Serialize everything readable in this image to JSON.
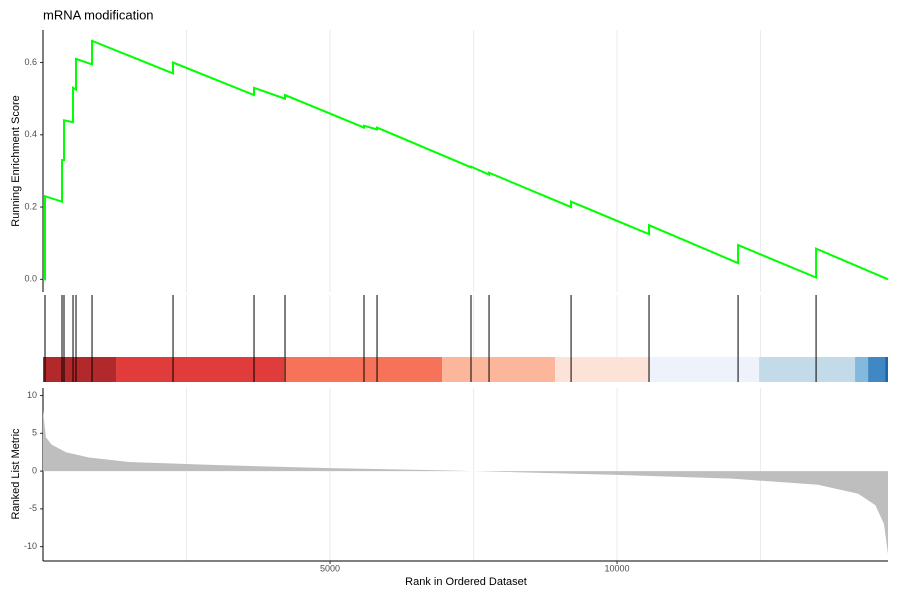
{
  "chart_data": {
    "type": "gsea",
    "title": "mRNA modification",
    "x_label": "Rank in Ordered Dataset",
    "xlim": [
      0,
      14720
    ],
    "xticks": [
      5000,
      10000
    ],
    "minor_xticks": [
      2500,
      7500,
      12500
    ],
    "grid": true,
    "score": {
      "y_label": "Running Enrichment Score",
      "color": "#00ff00",
      "ylim": [
        -0.035,
        0.69
      ],
      "yticks": [
        {
          "value": 0,
          "label": "0.0"
        },
        0.2,
        0.4,
        0.6
      ],
      "x": [
        0,
        35,
        35,
        331,
        331,
        366,
        366,
        523,
        523,
        575,
        575,
        854,
        854,
        2265,
        2265,
        3676,
        3676,
        4216,
        4216,
        5592,
        5592,
        5819,
        5819,
        7456,
        7456,
        7770,
        7770,
        9199,
        9199,
        10557,
        10557,
        12108,
        12108,
        13467,
        13467,
        14720
      ],
      "values": [
        0,
        0,
        0.23,
        0.215,
        0.33,
        0.33,
        0.44,
        0.435,
        0.53,
        0.525,
        0.61,
        0.595,
        0.66,
        0.57,
        0.6,
        0.51,
        0.53,
        0.5,
        0.51,
        0.42,
        0.425,
        0.415,
        0.42,
        0.31,
        0.312,
        0.29,
        0.295,
        0.2,
        0.215,
        0.125,
        0.15,
        0.045,
        0.095,
        0.005,
        0.085,
        0
      ]
    },
    "hits": [
      35,
      331,
      366,
      523,
      575,
      854,
      2265,
      3676,
      4216,
      5592,
      5819,
      7456,
      7770,
      9199,
      10557,
      12108,
      13467
    ],
    "hit_color": "#000000",
    "rank_bins": {
      "edges": [
        0,
        1272,
        4199,
        6951,
        8920,
        10557,
        12474,
        14146,
        14373,
        14669,
        14720
      ],
      "colors": [
        "#b2292c",
        "#e03c3b",
        "#f6735a",
        "#fcb69c",
        "#fde3d7",
        "#eef3fb",
        "#c3dbe9",
        "#82b9dc",
        "#3f88c4",
        "#2165ab"
      ]
    },
    "metric": {
      "y_label": "Ranked List Metric",
      "color": "#bebebe",
      "ylim": [
        -11.9,
        11
      ],
      "yticks": [
        -10,
        -5,
        0,
        5,
        10
      ],
      "x": [
        0,
        50,
        150,
        400,
        800,
        1500,
        3000,
        5000,
        7000,
        8000,
        10000,
        12000,
        13500,
        14200,
        14500,
        14650,
        14720
      ],
      "values": [
        8,
        4.5,
        3.5,
        2.5,
        1.8,
        1.2,
        0.8,
        0.4,
        0.1,
        -0.1,
        -0.5,
        -1,
        -1.8,
        -3,
        -4.5,
        -7,
        -11
      ]
    }
  }
}
